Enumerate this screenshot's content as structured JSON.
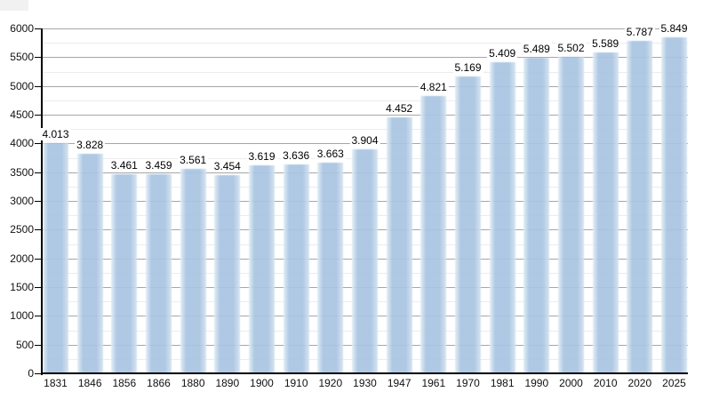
{
  "chart_data": {
    "type": "bar",
    "title": "",
    "xlabel": "",
    "ylabel": "",
    "categories": [
      "1831",
      "1846",
      "1856",
      "1866",
      "1880",
      "1890",
      "1900",
      "1910",
      "1920",
      "1930",
      "1947",
      "1961",
      "1970",
      "1981",
      "1990",
      "2000",
      "2010",
      "2020",
      "2025"
    ],
    "values": [
      4013,
      3828,
      3461,
      3459,
      3561,
      3454,
      3619,
      3636,
      3663,
      3904,
      4452,
      4821,
      5169,
      5409,
      5489,
      5502,
      5589,
      5787,
      5849
    ],
    "value_labels": [
      "4.013",
      "3.828",
      "3.461",
      "3.459",
      "3.561",
      "3.454",
      "3.619",
      "3.636",
      "3.663",
      "3.904",
      "4.452",
      "4.821",
      "5.169",
      "5.409",
      "5.489",
      "5.502",
      "5.589",
      "5.787",
      "5.849"
    ],
    "ylim": [
      0,
      6000
    ],
    "ytick_step": 500,
    "ytick_labels": [
      "0",
      "500",
      "1000",
      "1500",
      "2000",
      "2500",
      "3000",
      "3500",
      "4000",
      "4500",
      "5000",
      "5500",
      "6000"
    ],
    "minor_grid_step": 250,
    "grid": true,
    "legend": false,
    "colors": {
      "bar_fill": "#a9c4e1",
      "bar_edge_left": "#e3eef7",
      "bar_edge_right": "#d4e3f1",
      "grid_major": "#a6a6a6",
      "grid_minor": "#ececec",
      "axis": "#000000",
      "text": "#111111",
      "background": "#ffffff"
    }
  }
}
